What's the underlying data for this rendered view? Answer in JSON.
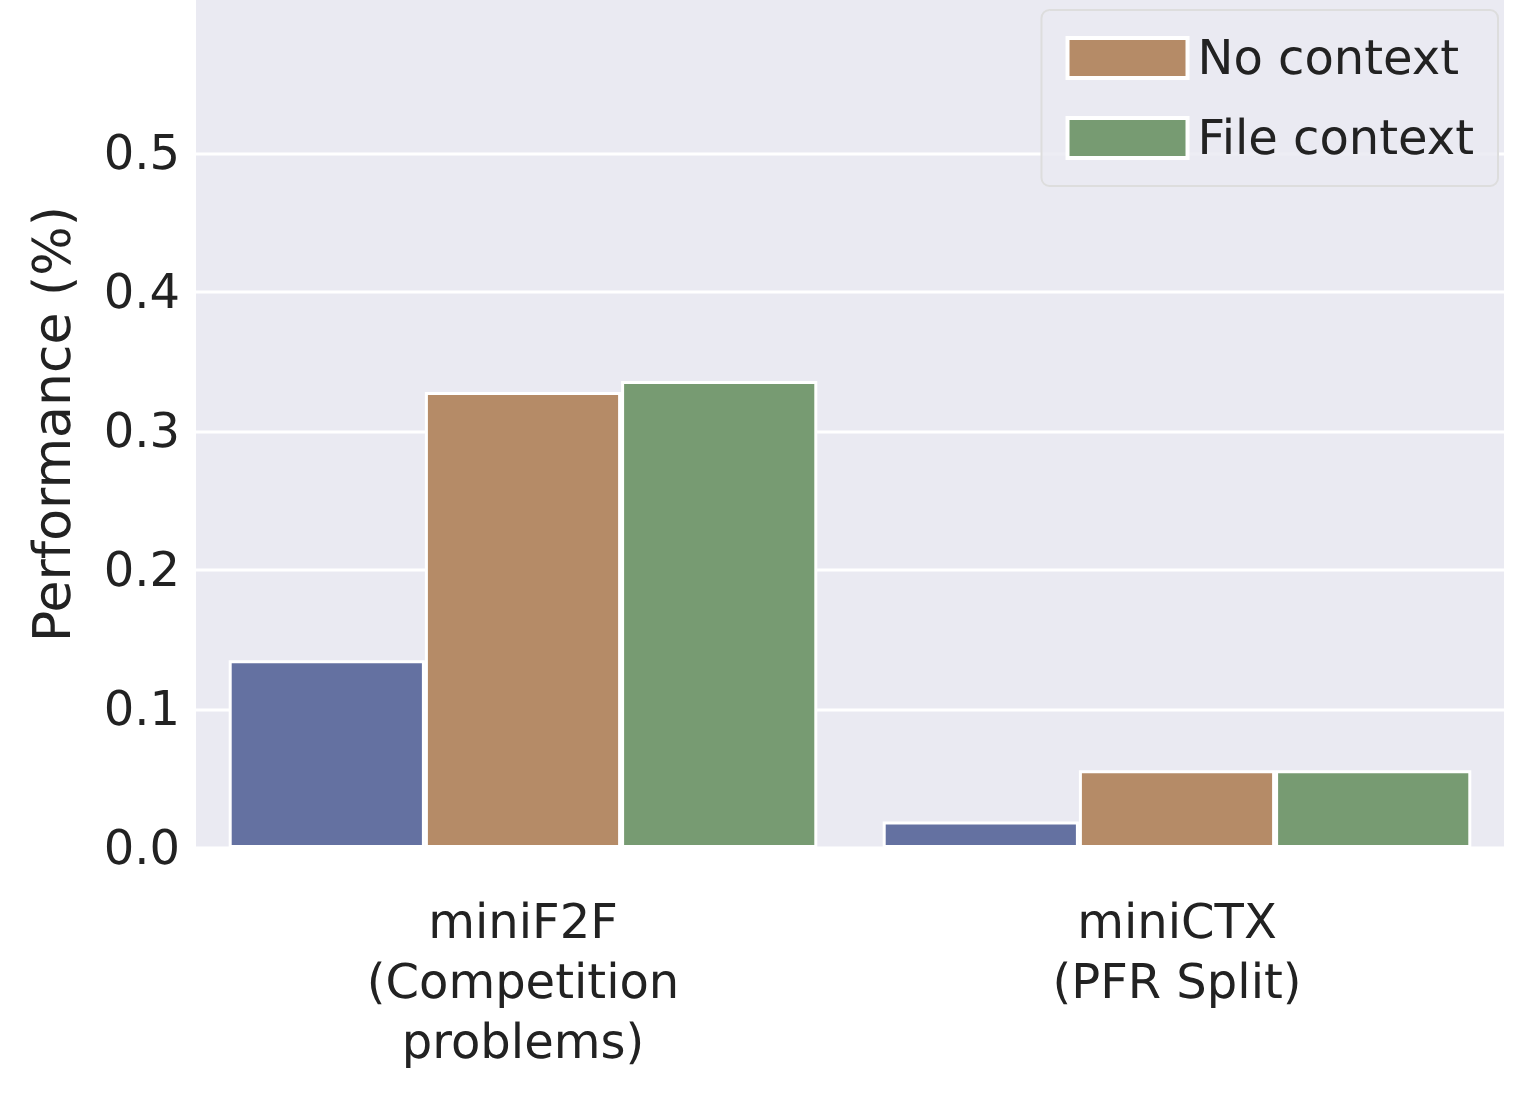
{
  "chart_data": {
    "type": "bar",
    "ylabel": "Performance (%)",
    "categories": [
      "miniF2F\n(Competition\nproblems)",
      "miniCTX\n(PFR Split)"
    ],
    "series": [
      {
        "color": "#6471a1",
        "values": [
          0.135,
          0.019
        ]
      },
      {
        "name": "No context",
        "color": "#b58b67",
        "values": [
          0.328,
          0.056
        ]
      },
      {
        "name": "File context",
        "color": "#779b72",
        "values": [
          0.336,
          0.056
        ]
      }
    ],
    "ylim": [
      0,
      0.61
    ],
    "yticks": [
      {
        "value": 0,
        "label": "0.0"
      },
      0.1,
      0.2,
      0.3,
      0.4,
      0.5
    ],
    "grid": "y",
    "legend": "top right"
  }
}
